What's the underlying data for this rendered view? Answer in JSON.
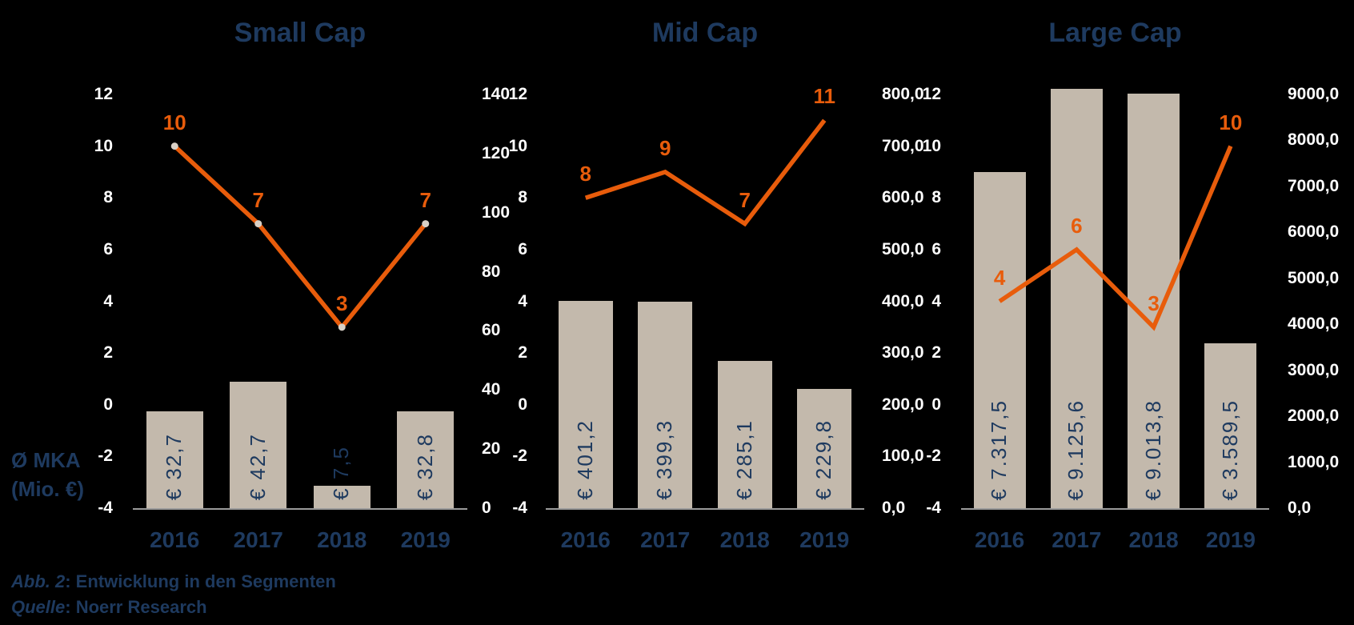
{
  "page": {
    "background": "#000000"
  },
  "colors": {
    "navy": "#1E3A5F",
    "orange": "#E85C0B",
    "bar_fill": "#C3B9AC",
    "axis_text": "#FFFFFF",
    "axis_line": "#9A9A9A",
    "marker": "#D8D0C6"
  },
  "side_label": {
    "line1": "Ø MKA",
    "line2": "(Mio. €)"
  },
  "footer": {
    "caption_prefix": "Abb. 2",
    "caption_rest": ": Entwicklung in den Segmenten",
    "source_prefix": "Quelle",
    "source_rest": ": Noerr Research"
  },
  "chart_data": [
    {
      "type": "combo",
      "title": "Small Cap",
      "categories": [
        "2016",
        "2017",
        "2018",
        "2019"
      ],
      "series": [
        {
          "type": "bar",
          "axis": "right",
          "values": [
            32.7,
            42.7,
            7.5,
            32.8
          ],
          "data_labels": [
            "€ 32,7",
            "€ 42,7",
            "€ 7,5",
            "€ 32,8"
          ]
        },
        {
          "type": "line",
          "axis": "left",
          "values": [
            10,
            7,
            3,
            7
          ],
          "data_labels": [
            "10",
            "7",
            "3",
            "7"
          ],
          "markers": true
        }
      ],
      "axes": {
        "left": {
          "min": -4,
          "max": 12,
          "ticks": [
            "12",
            "10",
            "8",
            "6",
            "4",
            "2",
            "0",
            "-2",
            "-4"
          ]
        },
        "right": {
          "min": 0,
          "max": 140,
          "ticks": [
            "140",
            "120",
            "100",
            "80",
            "60",
            "40",
            "20",
            "0"
          ]
        }
      },
      "grid": false,
      "legend": "none"
    },
    {
      "type": "combo",
      "title": "Mid Cap",
      "categories": [
        "2016",
        "2017",
        "2018",
        "2019"
      ],
      "series": [
        {
          "type": "bar",
          "axis": "right",
          "values": [
            401.2,
            399.3,
            285.1,
            229.8
          ],
          "data_labels": [
            "€ 401,2",
            "€ 399,3",
            "€ 285,1",
            "€ 229,8"
          ]
        },
        {
          "type": "line",
          "axis": "left",
          "values": [
            8,
            9,
            7,
            11
          ],
          "data_labels": [
            "8",
            "9",
            "7",
            "11"
          ],
          "markers": false
        }
      ],
      "axes": {
        "left": {
          "min": -4,
          "max": 12,
          "ticks": [
            "12",
            "10",
            "8",
            "6",
            "4",
            "2",
            "0",
            "-2",
            "-4"
          ]
        },
        "right": {
          "min": 0,
          "max": 800,
          "ticks": [
            "800,0",
            "700,0",
            "600,0",
            "500,0",
            "400,0",
            "300,0",
            "200,0",
            "100,0",
            "0,0"
          ]
        }
      },
      "grid": false,
      "legend": "none"
    },
    {
      "type": "combo",
      "title": "Large Cap",
      "categories": [
        "2016",
        "2017",
        "2018",
        "2019"
      ],
      "series": [
        {
          "type": "bar",
          "axis": "right",
          "values": [
            7317.5,
            9125.6,
            9013.8,
            3589.5
          ],
          "data_labels": [
            "€ 7.317,5",
            "€ 9.125,6",
            "€ 9.013,8",
            "€ 3.589,5"
          ]
        },
        {
          "type": "line",
          "axis": "left",
          "values": [
            4,
            6,
            3,
            10
          ],
          "data_labels": [
            "4",
            "6",
            "3",
            "10"
          ],
          "markers": false
        }
      ],
      "axes": {
        "left": {
          "min": -4,
          "max": 12,
          "ticks": [
            "12",
            "10",
            "8",
            "6",
            "4",
            "2",
            "0",
            "-2",
            "-4"
          ]
        },
        "right": {
          "min": 0,
          "max": 9000,
          "ticks": [
            "9000,0",
            "8000,0",
            "7000,0",
            "6000,0",
            "5000,0",
            "4000,0",
            "3000,0",
            "2000,0",
            "1000,0",
            "0,0"
          ]
        }
      },
      "grid": false,
      "legend": "none"
    }
  ]
}
